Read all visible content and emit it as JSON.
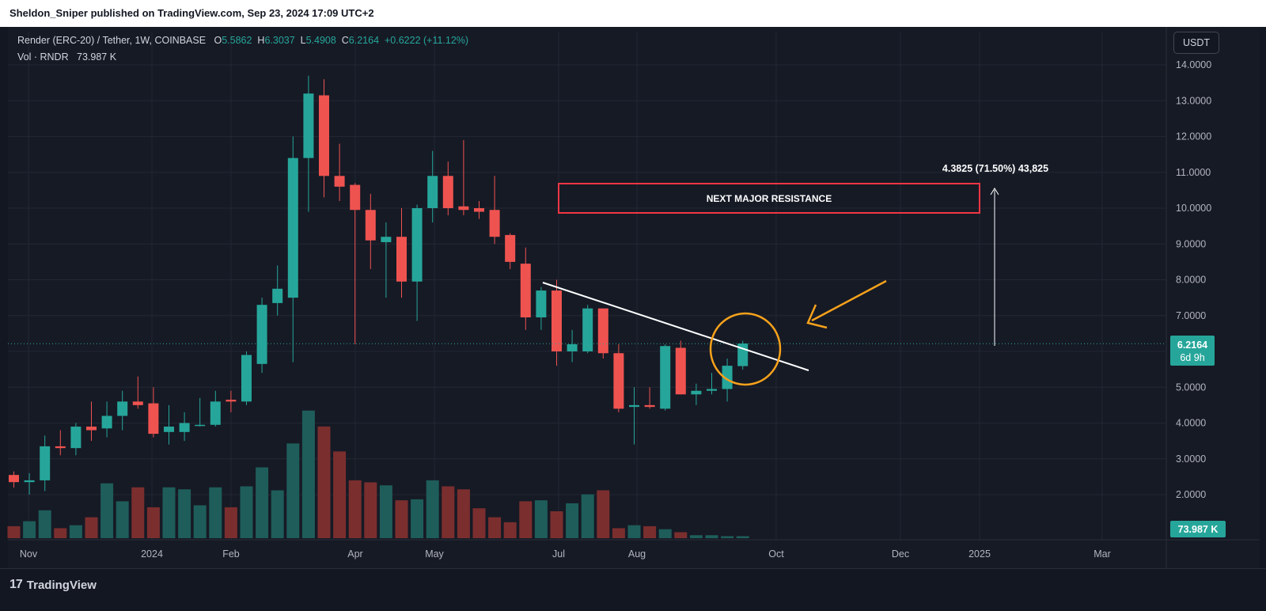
{
  "header": {
    "published": "Sheldon_Sniper published on TradingView.com, Sep 23, 2024 17:09 UTC+2"
  },
  "legend": {
    "symbol": "Render (ERC-20) / Tether, 1W, COINBASE",
    "o_label": "O",
    "o": "5.5862",
    "h_label": "H",
    "h": "6.3037",
    "l_label": "L",
    "l": "5.4908",
    "c_label": "C",
    "c": "6.2164",
    "change": "+0.6222 (+11.12%)",
    "vol_label": "Vol · RNDR",
    "vol_value": "73.987 K"
  },
  "currency": "USDT",
  "price_badge": {
    "price": "6.2164",
    "countdown": "6d 9h"
  },
  "volume_badge": "73.987 K",
  "annotations": {
    "resistance_label": "NEXT MAJOR RESISTANCE",
    "measure_label": "4.3825 (71.50%) 43,825"
  },
  "footer": {
    "brand": "TradingView"
  },
  "colors": {
    "up": "#26a69a",
    "down": "#ef5350",
    "up_vol": "#1e5d5a",
    "down_vol": "#7b2e2e",
    "arrow": "#f7a21b",
    "resistance": "#f23645"
  },
  "chart_data": {
    "type": "candlestick",
    "title": "Render (ERC-20) / Tether, 1W, COINBASE",
    "ylim": [
      1.0,
      14.5
    ],
    "y_ticks": [
      "14.0000",
      "13.0000",
      "12.0000",
      "11.0000",
      "10.0000",
      "9.0000",
      "8.0000",
      "7.0000",
      "6.0000",
      "5.0000",
      "4.0000",
      "3.0000",
      "2.0000"
    ],
    "x_ticks": [
      "Nov",
      "2024",
      "Feb",
      "Apr",
      "May",
      "Jul",
      "Aug",
      "Oct",
      "Dec",
      "2025",
      "Mar"
    ],
    "grid": true,
    "candles": [
      {
        "o": 2.55,
        "h": 2.65,
        "l": 2.2,
        "c": 2.35
      },
      {
        "o": 2.35,
        "h": 2.6,
        "l": 2.0,
        "c": 2.4
      },
      {
        "o": 2.4,
        "h": 3.65,
        "l": 2.1,
        "c": 3.35
      },
      {
        "o": 3.35,
        "h": 3.8,
        "l": 3.1,
        "c": 3.3
      },
      {
        "o": 3.3,
        "h": 4.0,
        "l": 3.1,
        "c": 3.9
      },
      {
        "o": 3.9,
        "h": 4.6,
        "l": 3.5,
        "c": 3.8
      },
      {
        "o": 3.85,
        "h": 4.6,
        "l": 3.6,
        "c": 4.2
      },
      {
        "o": 4.2,
        "h": 4.9,
        "l": 3.8,
        "c": 4.6
      },
      {
        "o": 4.6,
        "h": 5.3,
        "l": 4.4,
        "c": 4.5
      },
      {
        "o": 4.55,
        "h": 5.0,
        "l": 3.6,
        "c": 3.7
      },
      {
        "o": 3.75,
        "h": 4.5,
        "l": 3.4,
        "c": 3.9
      },
      {
        "o": 3.75,
        "h": 4.3,
        "l": 3.5,
        "c": 4.0
      },
      {
        "o": 3.95,
        "h": 4.7,
        "l": 3.9,
        "c": 3.95
      },
      {
        "o": 3.95,
        "h": 4.9,
        "l": 3.9,
        "c": 4.6
      },
      {
        "o": 4.65,
        "h": 4.9,
        "l": 4.3,
        "c": 4.6
      },
      {
        "o": 4.6,
        "h": 6.0,
        "l": 4.5,
        "c": 5.9
      },
      {
        "o": 5.65,
        "h": 7.5,
        "l": 5.4,
        "c": 7.3
      },
      {
        "o": 7.35,
        "h": 8.4,
        "l": 7.0,
        "c": 7.75
      },
      {
        "o": 7.5,
        "h": 12.0,
        "l": 5.7,
        "c": 11.4
      },
      {
        "o": 11.4,
        "h": 13.7,
        "l": 9.9,
        "c": 13.2
      },
      {
        "o": 13.15,
        "h": 13.6,
        "l": 10.3,
        "c": 10.9
      },
      {
        "o": 10.9,
        "h": 11.8,
        "l": 10.2,
        "c": 10.6
      },
      {
        "o": 10.65,
        "h": 10.7,
        "l": 6.2,
        "c": 9.95
      },
      {
        "o": 9.95,
        "h": 10.4,
        "l": 8.3,
        "c": 9.1
      },
      {
        "o": 9.05,
        "h": 9.6,
        "l": 7.5,
        "c": 9.2
      },
      {
        "o": 9.2,
        "h": 10.0,
        "l": 7.5,
        "c": 7.95
      },
      {
        "o": 7.95,
        "h": 10.1,
        "l": 6.85,
        "c": 10.0
      },
      {
        "o": 10.0,
        "h": 11.6,
        "l": 9.6,
        "c": 10.9
      },
      {
        "o": 10.9,
        "h": 11.3,
        "l": 9.8,
        "c": 10.0
      },
      {
        "o": 10.05,
        "h": 11.9,
        "l": 9.8,
        "c": 9.95
      },
      {
        "o": 10.0,
        "h": 10.2,
        "l": 9.7,
        "c": 9.9
      },
      {
        "o": 9.95,
        "h": 10.9,
        "l": 9.0,
        "c": 9.2
      },
      {
        "o": 9.25,
        "h": 9.3,
        "l": 8.3,
        "c": 8.5
      },
      {
        "o": 8.45,
        "h": 8.9,
        "l": 6.6,
        "c": 6.95
      },
      {
        "o": 6.95,
        "h": 7.8,
        "l": 6.6,
        "c": 7.7
      },
      {
        "o": 7.7,
        "h": 8.0,
        "l": 5.6,
        "c": 6.0
      },
      {
        "o": 6.0,
        "h": 6.6,
        "l": 5.7,
        "c": 6.2
      },
      {
        "o": 6.0,
        "h": 7.3,
        "l": 5.95,
        "c": 7.2
      },
      {
        "o": 7.2,
        "h": 7.2,
        "l": 5.8,
        "c": 5.95
      },
      {
        "o": 5.95,
        "h": 6.2,
        "l": 4.3,
        "c": 4.4
      },
      {
        "o": 4.45,
        "h": 5.0,
        "l": 3.4,
        "c": 4.5
      },
      {
        "o": 4.5,
        "h": 5.0,
        "l": 4.4,
        "c": 4.45
      },
      {
        "o": 4.4,
        "h": 6.2,
        "l": 4.35,
        "c": 6.15
      },
      {
        "o": 6.1,
        "h": 6.3,
        "l": 4.8,
        "c": 4.8
      },
      {
        "o": 4.8,
        "h": 5.1,
        "l": 4.5,
        "c": 4.9
      },
      {
        "o": 4.9,
        "h": 5.4,
        "l": 4.8,
        "c": 4.95
      },
      {
        "o": 4.95,
        "h": 5.8,
        "l": 4.6,
        "c": 5.6
      },
      {
        "o": 5.59,
        "h": 6.3,
        "l": 5.49,
        "c": 6.22
      }
    ],
    "volume": [
      12,
      17,
      28,
      10,
      13,
      21,
      55,
      37,
      51,
      31,
      51,
      49,
      33,
      51,
      31,
      52,
      71,
      48,
      95,
      128,
      112,
      87,
      58,
      56,
      53,
      38,
      39,
      58,
      52,
      49,
      30,
      21,
      16,
      37,
      38,
      27,
      35,
      44,
      48,
      10,
      13,
      12,
      9,
      6,
      3,
      3,
      2,
      2
    ]
  }
}
